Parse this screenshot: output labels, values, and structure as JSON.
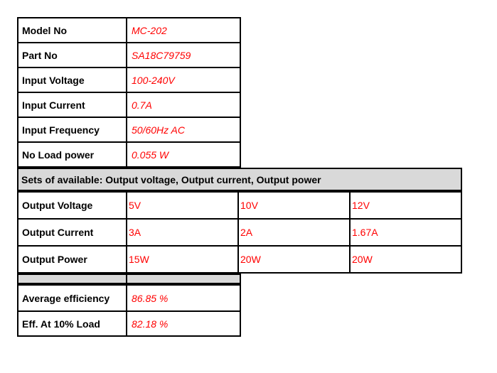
{
  "page": {
    "background": "#FFFFFF",
    "description": "Power adapter specification sheet"
  },
  "colors": {
    "value_red": "#FF0000",
    "text_black": "#000000",
    "shade_gray": "#D9D9D9",
    "border_black": "#000000"
  },
  "spec_table": {
    "rows": [
      {
        "label": "Model No",
        "value": "MC-202"
      },
      {
        "label": "Part No",
        "value": "SA18C79759"
      },
      {
        "label": "Input Voltage",
        "value": "100-240V"
      },
      {
        "label": "Input Current",
        "value": "0.7A"
      },
      {
        "label": "Input Frequency",
        "value": "50/60Hz AC"
      },
      {
        "label": "No Load power",
        "value": "0.055 W"
      }
    ]
  },
  "sets_header": {
    "text": "Sets of available: Output voltage, Output current, Output power"
  },
  "output_table": {
    "rows": [
      {
        "label": "Output Voltage",
        "values": [
          "5V",
          "10V",
          "12V"
        ]
      },
      {
        "label": "Output Current",
        "values": [
          "3A",
          "2A",
          "1.67A"
        ]
      },
      {
        "label": "Output Power",
        "values": [
          "15W",
          "20W",
          "20W"
        ]
      }
    ]
  },
  "efficiency_table": {
    "rows": [
      {
        "label": "Average efficiency",
        "value": "86.85 %"
      },
      {
        "label": "Eff. At 10% Load",
        "value": "82.18 %"
      }
    ]
  }
}
